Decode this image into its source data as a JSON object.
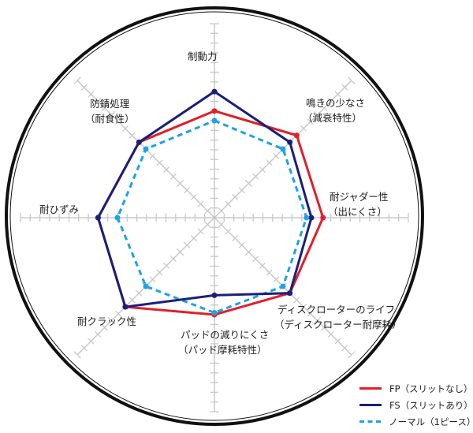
{
  "chart_data": {
    "type": "radar",
    "axes": [
      {
        "label": [
          "制動力"
        ]
      },
      {
        "label": [
          "鳴きの少なさ",
          "（減衰特性）"
        ]
      },
      {
        "label": [
          "耐ジャダー性",
          "（出にくさ）"
        ]
      },
      {
        "label": [
          "ディスクローターのライフ",
          "（ディスクローター耐摩耗）"
        ]
      },
      {
        "label": [
          "パッドの減りにくさ",
          "（パッド摩耗特性）"
        ]
      },
      {
        "label": [
          "耐クラック性"
        ]
      },
      {
        "label": [
          "耐ひずみ"
        ]
      },
      {
        "label": [
          "防錆処理",
          "（耐食性）"
        ]
      }
    ],
    "range": [
      0,
      20
    ],
    "grid": true,
    "legend_position": "bottom-right",
    "series": [
      {
        "name": "FP（スリットなし）",
        "color": "#e0202a",
        "style": "solid",
        "values": [
          11,
          12,
          11.2,
          11,
          10,
          13,
          12,
          11
        ]
      },
      {
        "name": "FS（スリットあり）",
        "color": "#1a1f7a",
        "style": "solid",
        "values": [
          13,
          11,
          10,
          11,
          8,
          13,
          12,
          11
        ]
      },
      {
        "name": "ノーマル（1ピース）",
        "color": "#1aa3e8",
        "style": "dashed",
        "values": [
          10,
          10,
          9.5,
          10,
          9.8,
          10,
          10,
          10
        ]
      }
    ]
  }
}
